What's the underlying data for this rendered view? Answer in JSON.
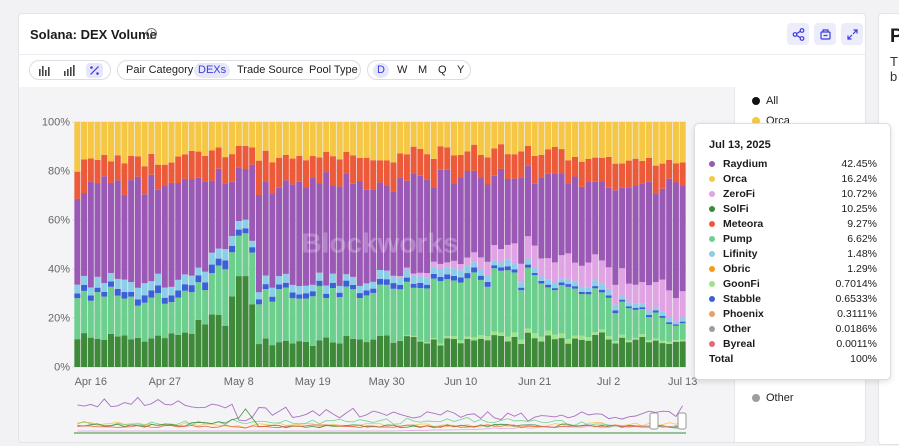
{
  "header": {
    "title": "Solana: DEX Volume",
    "share_icon": "share-icon",
    "save_icon": "save-icon",
    "expand_icon": "expand-icon"
  },
  "toolbar": {
    "chart_type_icons": [
      "bar-chart-icon",
      "stacked-bar-icon",
      "percent-icon"
    ],
    "groupings": [
      "Pair Category",
      "DEXs",
      "Trade Source",
      "Pool Type"
    ],
    "active_grouping": "DEXs",
    "intervals": [
      "D",
      "W",
      "M",
      "Q",
      "Y"
    ],
    "active_interval": "D"
  },
  "watermark": "Blockworks",
  "legend": {
    "items": [
      {
        "label": "All",
        "color": "#111111"
      },
      {
        "label": "Orca",
        "color": "#f5c744"
      },
      {
        "label": "Other",
        "color": "#9e9e9e"
      }
    ]
  },
  "tooltip": {
    "date": "Jul 13, 2025",
    "rows": [
      {
        "name": "Raydium",
        "value": "42.45%",
        "color": "#9b59b6"
      },
      {
        "name": "Orca",
        "value": "16.24%",
        "color": "#f5c744"
      },
      {
        "name": "ZeroFi",
        "value": "10.72%",
        "color": "#e0a3e3"
      },
      {
        "name": "SolFi",
        "value": "10.25%",
        "color": "#3e8a3a"
      },
      {
        "name": "Meteora",
        "value": "9.27%",
        "color": "#ec5a3a"
      },
      {
        "name": "Pump",
        "value": "6.62%",
        "color": "#6dcf8e"
      },
      {
        "name": "Lifinity",
        "value": "1.48%",
        "color": "#8ccde8"
      },
      {
        "name": "Obric",
        "value": "1.29%",
        "color": "#f59a1a"
      },
      {
        "name": "GoonFi",
        "value": "0.7014%",
        "color": "#9fe28a"
      },
      {
        "name": "Stabble",
        "value": "0.6533%",
        "color": "#3c5fd8"
      },
      {
        "name": "Phoenix",
        "value": "0.3111%",
        "color": "#e8a06a"
      },
      {
        "name": "Other",
        "value": "0.0186%",
        "color": "#9e9e9e"
      },
      {
        "name": "Byreal",
        "value": "0.0011%",
        "color": "#e86a7a"
      }
    ],
    "total_label": "Total",
    "total_value": "100%"
  },
  "side_card": {
    "title": "P",
    "line1": "T",
    "line2": "b"
  },
  "chart_data": {
    "type": "bar",
    "stacked": true,
    "normalized_percent": true,
    "x_start": "2025-04-14",
    "x_end": "2025-07-13",
    "x_ticks": [
      "Apr 16",
      "Apr 27",
      "May 8",
      "May 19",
      "May 30",
      "Jun 10",
      "Jun 21",
      "Jul 2",
      "Jul 13"
    ],
    "y_ticks": [
      "0%",
      "20%",
      "40%",
      "60%",
      "80%",
      "100%"
    ],
    "ylim": [
      0,
      100
    ],
    "grid": true,
    "legend_position": "right",
    "series_order_bottom_to_top": [
      "SolFi",
      "GoonFi",
      "Pump",
      "Stabble",
      "Lifinity",
      "ZeroFi",
      "Raydium",
      "Meteora",
      "Orca"
    ],
    "series_colors": {
      "SolFi": "#3e8a3a",
      "GoonFi": "#9fe28a",
      "Pump": "#6dcf8e",
      "Stabble": "#3c5fd8",
      "Lifinity": "#8ccde8",
      "ZeroFi": "#e0a3e3",
      "Raydium": "#9b59b6",
      "Meteora": "#ec5a3a",
      "Orca": "#f5c744"
    },
    "keyframes": [
      {
        "date": "2025-04-14",
        "SolFi": 12,
        "GoonFi": 0,
        "Pump": 17,
        "Stabble": 2,
        "Lifinity": 4,
        "ZeroFi": 0,
        "Raydium": 38,
        "Meteora": 11,
        "Orca": 16
      },
      {
        "date": "2025-04-27",
        "SolFi": 12,
        "GoonFi": 0,
        "Pump": 16,
        "Stabble": 3,
        "Lifinity": 4,
        "ZeroFi": 0,
        "Raydium": 40,
        "Meteora": 10,
        "Orca": 15
      },
      {
        "date": "2025-05-06",
        "SolFi": 20,
        "GoonFi": 0,
        "Pump": 20,
        "Stabble": 3,
        "Lifinity": 4,
        "ZeroFi": 0,
        "Raydium": 30,
        "Meteora": 10,
        "Orca": 13
      },
      {
        "date": "2025-05-09",
        "SolFi": 40,
        "GoonFi": 0,
        "Pump": 20,
        "Stabble": 2,
        "Lifinity": 3,
        "ZeroFi": 0,
        "Raydium": 18,
        "Meteora": 8,
        "Orca": 9
      },
      {
        "date": "2025-05-11",
        "SolFi": 10,
        "GoonFi": 0,
        "Pump": 18,
        "Stabble": 2,
        "Lifinity": 3,
        "ZeroFi": 0,
        "Raydium": 42,
        "Meteora": 11,
        "Orca": 14
      },
      {
        "date": "2025-05-30",
        "SolFi": 11,
        "GoonFi": 0,
        "Pump": 21,
        "Stabble": 2,
        "Lifinity": 3,
        "ZeroFi": 0,
        "Raydium": 40,
        "Meteora": 10,
        "Orca": 13
      },
      {
        "date": "2025-06-10",
        "SolFi": 11,
        "GoonFi": 1,
        "Pump": 24,
        "Stabble": 2,
        "Lifinity": 3,
        "ZeroFi": 3,
        "Raydium": 34,
        "Meteora": 10,
        "Orca": 12
      },
      {
        "date": "2025-06-21",
        "SolFi": 12,
        "GoonFi": 2,
        "Pump": 22,
        "Stabble": 1,
        "Lifinity": 2,
        "ZeroFi": 9,
        "Raydium": 30,
        "Meteora": 10,
        "Orca": 12
      },
      {
        "date": "2025-07-02",
        "SolFi": 11,
        "GoonFi": 1,
        "Pump": 14,
        "Stabble": 1,
        "Lifinity": 2,
        "ZeroFi": 9,
        "Raydium": 36,
        "Meteora": 11,
        "Orca": 15
      },
      {
        "date": "2025-07-13",
        "SolFi": 10.25,
        "GoonFi": 0.7,
        "Pump": 6.62,
        "Stabble": 0.65,
        "Lifinity": 1.48,
        "ZeroFi": 10.72,
        "Raydium": 42.45,
        "Meteora": 9.27,
        "Orca": 16.24
      }
    ]
  }
}
